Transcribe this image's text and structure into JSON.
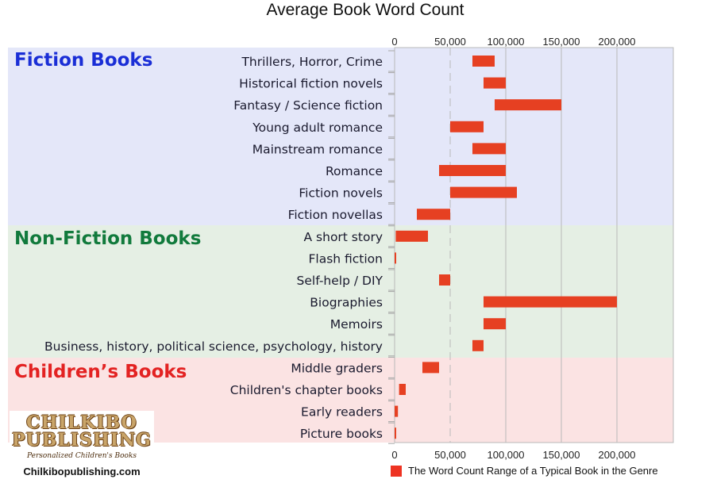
{
  "chart_data": {
    "type": "bar",
    "subtype": "floating-range-horizontal",
    "title": "Average Book Word Count",
    "xlim": [
      0,
      250000
    ],
    "xticks": [
      0,
      50000,
      100000,
      150000,
      200000
    ],
    "xtick_labels": [
      "0",
      "50,000",
      "100,000",
      "150,000",
      "200,000"
    ],
    "tick_positions": [
      "top",
      "bottom"
    ],
    "grid": true,
    "legend": {
      "label": "The Word Count Range of a Typical Book in the Genre",
      "placement": "bottom-right",
      "color": "#ee3322"
    },
    "bar_color": "#e64022",
    "groups": [
      {
        "name": "Fiction Books",
        "color": "#1a2ed6",
        "band_color": "#e4e7f9",
        "categories": [
          {
            "label": "Thrillers, Horror, Crime",
            "min": 70000,
            "max": 90000
          },
          {
            "label": "Historical fiction novels",
            "min": 80000,
            "max": 100000
          },
          {
            "label": "Fantasy / Science fiction",
            "min": 90000,
            "max": 150000
          },
          {
            "label": "Young adult romance",
            "min": 50000,
            "max": 80000
          },
          {
            "label": "Mainstream romance",
            "min": 70000,
            "max": 100000
          },
          {
            "label": "Romance",
            "min": 40000,
            "max": 100000
          },
          {
            "label": "Fiction novels",
            "min": 50000,
            "max": 110000
          },
          {
            "label": "Fiction novellas",
            "min": 20000,
            "max": 50000
          }
        ]
      },
      {
        "name": "Non-Fiction Books",
        "color": "#117a3c",
        "band_color": "#e5efe4",
        "categories": [
          {
            "label": "A short story",
            "min": 1000,
            "max": 30000
          },
          {
            "label": "Flash fiction",
            "min": 0,
            "max": 1000
          },
          {
            "label": "Self-help / DIY",
            "min": 40000,
            "max": 50000
          },
          {
            "label": "Biographies",
            "min": 80000,
            "max": 200000
          },
          {
            "label": "Memoirs",
            "min": 80000,
            "max": 100000
          },
          {
            "label": "Business, history, political science, psychology, history",
            "min": 70000,
            "max": 80000
          }
        ]
      },
      {
        "name": "Children’s Books",
        "color": "#e32222",
        "band_color": "#fbe3e3",
        "categories": [
          {
            "label": "Middle graders",
            "min": 25000,
            "max": 40000
          },
          {
            "label": "Children's chapter books",
            "min": 4000,
            "max": 10000
          },
          {
            "label": "Early readers",
            "min": 0,
            "max": 3000
          },
          {
            "label": "Picture books",
            "min": 0,
            "max": 1000
          }
        ]
      }
    ]
  },
  "logo": {
    "name_line1": "CHILKIBO",
    "name_line2": "PUBLISHING",
    "tagline": "Personalized Children's Books",
    "website": "Chilkibopublishing.com"
  }
}
